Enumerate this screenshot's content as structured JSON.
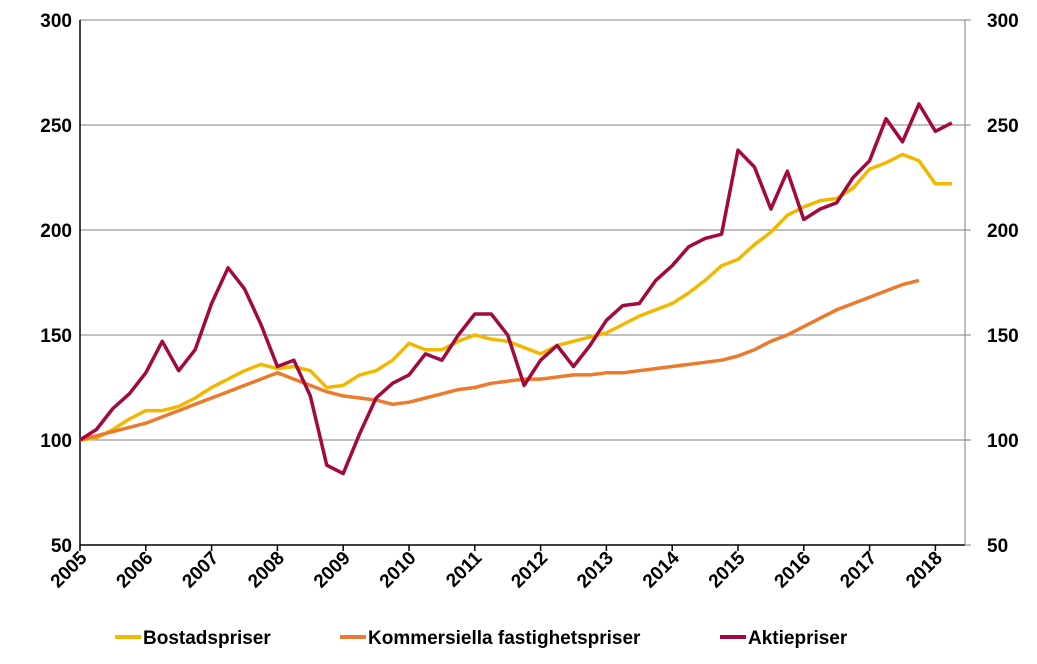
{
  "chart_data": {
    "type": "line",
    "x": [
      2005,
      2005.25,
      2005.5,
      2005.75,
      2006,
      2006.25,
      2006.5,
      2006.75,
      2007,
      2007.25,
      2007.5,
      2007.75,
      2008,
      2008.25,
      2008.5,
      2008.75,
      2009,
      2009.25,
      2009.5,
      2009.75,
      2010,
      2010.25,
      2010.5,
      2010.75,
      2011,
      2011.25,
      2011.5,
      2011.75,
      2012,
      2012.25,
      2012.5,
      2012.75,
      2013,
      2013.25,
      2013.5,
      2013.75,
      2014,
      2014.25,
      2014.5,
      2014.75,
      2015,
      2015.25,
      2015.5,
      2015.75,
      2016,
      2016.25,
      2016.5,
      2016.75,
      2017,
      2017.25,
      2017.5,
      2017.75,
      2018,
      2018.25
    ],
    "series": [
      {
        "name": "Bostadspriser",
        "color": "#f2b800",
        "values": [
          100,
          101,
          105,
          110,
          114,
          114,
          116,
          120,
          125,
          129,
          133,
          136,
          134,
          135,
          133,
          125,
          126,
          131,
          133,
          138,
          146,
          143,
          143,
          147,
          150,
          148,
          147,
          144,
          141,
          145,
          147,
          149,
          151,
          155,
          159,
          162,
          165,
          170,
          176,
          183,
          186,
          193,
          199,
          207,
          211,
          214,
          215,
          220,
          229,
          232,
          236,
          233,
          222,
          222
        ]
      },
      {
        "name": "Kommersiella fastighetspriser",
        "color": "#ec7a2c",
        "values": [
          100,
          102,
          104,
          106,
          108,
          111,
          114,
          117,
          120,
          123,
          126,
          129,
          132,
          129,
          126,
          123,
          121,
          120,
          119,
          117,
          118,
          120,
          122,
          124,
          125,
          127,
          128,
          129,
          129,
          130,
          131,
          131,
          132,
          132,
          133,
          134,
          135,
          136,
          137,
          138,
          140,
          143,
          147,
          150,
          154,
          158,
          162,
          165,
          168,
          171,
          174,
          176,
          null,
          null
        ]
      },
      {
        "name": "Aktiepriser",
        "color": "#a3093f",
        "values": [
          100,
          105,
          115,
          122,
          132,
          147,
          133,
          143,
          165,
          182,
          172,
          155,
          135,
          138,
          121,
          88,
          84,
          103,
          120,
          127,
          131,
          141,
          138,
          150,
          160,
          160,
          150,
          126,
          138,
          145,
          135,
          145,
          157,
          164,
          165,
          176,
          183,
          192,
          196,
          198,
          238,
          230,
          210,
          228,
          205,
          210,
          213,
          225,
          233,
          253,
          242,
          260,
          247,
          251
        ]
      }
    ],
    "xlim": [
      2005,
      2018.45
    ],
    "xticks": [
      2005,
      2006,
      2007,
      2008,
      2009,
      2010,
      2011,
      2012,
      2013,
      2014,
      2015,
      2016,
      2017,
      2018
    ],
    "ylim": [
      50,
      300
    ],
    "yticks": [
      50,
      100,
      150,
      200,
      250,
      300
    ],
    "y2lim": [
      50,
      300
    ],
    "y2ticks": [
      50,
      100,
      150,
      200,
      250,
      300
    ],
    "grid": true,
    "legend": "bottom"
  }
}
